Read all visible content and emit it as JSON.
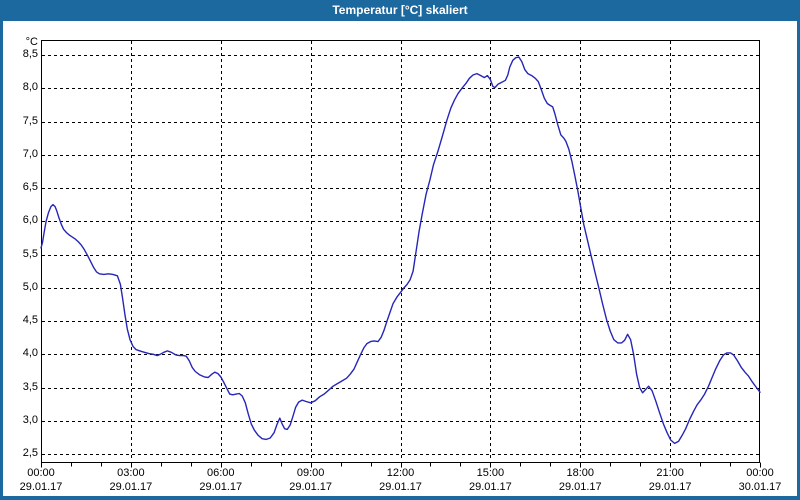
{
  "window": {
    "title": "Temperatur [°C] skaliert",
    "colors": {
      "title_bar": "#1c69a0",
      "border": "#1c69a0",
      "content_bg": "#ffffff",
      "grid": "#000000",
      "axis": "#000000",
      "text": "#000000"
    }
  },
  "chart_data": {
    "type": "line",
    "title": "Temperatur [°C] skaliert",
    "grid": {
      "style": "dashed",
      "color": "#000000",
      "horizontal": true,
      "vertical": true
    },
    "legend": "none",
    "axes": {
      "y": {
        "unit": "°C",
        "decimal_style": "comma",
        "tick_min": 2.5,
        "tick_max": 8.5,
        "tick_step": 0.5,
        "labels": [
          "8,5",
          "8,0",
          "7,5",
          "7,0",
          "6,5",
          "6,0",
          "5,5",
          "5,0",
          "4,5",
          "4,0",
          "3,5",
          "3,0",
          "2,5"
        ],
        "ylim": [
          2.38,
          8.73
        ]
      },
      "x": {
        "xlim_hours": [
          0,
          24
        ],
        "major_step_hours": 3,
        "minor_step_hours": 1,
        "ticks": [
          {
            "time": "00:00",
            "date": "29.01.17"
          },
          {
            "time": "03:00",
            "date": "29.01.17"
          },
          {
            "time": "06:00",
            "date": "29.01.17"
          },
          {
            "time": "09:00",
            "date": "29.01.17"
          },
          {
            "time": "12:00",
            "date": "29.01.17"
          },
          {
            "time": "15:00",
            "date": "29.01.17"
          },
          {
            "time": "18:00",
            "date": "29.01.17"
          },
          {
            "time": "21:00",
            "date": "29.01.17"
          },
          {
            "time": "00:00",
            "date": "30.01.17"
          }
        ]
      }
    },
    "series": [
      {
        "name": "Temperatur",
        "color": "#2626b8",
        "points": [
          [
            0,
            5.6
          ],
          [
            0.05,
            5.68
          ],
          [
            0.1,
            5.82
          ],
          [
            0.17,
            6.0
          ],
          [
            0.25,
            6.13
          ],
          [
            0.33,
            6.22
          ],
          [
            0.4,
            6.25
          ],
          [
            0.47,
            6.22
          ],
          [
            0.53,
            6.15
          ],
          [
            0.6,
            6.05
          ],
          [
            0.68,
            5.95
          ],
          [
            0.75,
            5.88
          ],
          [
            0.85,
            5.83
          ],
          [
            0.95,
            5.79
          ],
          [
            1.05,
            5.76
          ],
          [
            1.15,
            5.73
          ],
          [
            1.25,
            5.69
          ],
          [
            1.35,
            5.64
          ],
          [
            1.45,
            5.57
          ],
          [
            1.55,
            5.49
          ],
          [
            1.65,
            5.4
          ],
          [
            1.75,
            5.31
          ],
          [
            1.85,
            5.24
          ],
          [
            1.95,
            5.21
          ],
          [
            2.1,
            5.2
          ],
          [
            2.25,
            5.21
          ],
          [
            2.4,
            5.2
          ],
          [
            2.55,
            5.18
          ],
          [
            2.65,
            5.05
          ],
          [
            2.72,
            4.85
          ],
          [
            2.8,
            4.6
          ],
          [
            2.88,
            4.38
          ],
          [
            2.97,
            4.22
          ],
          [
            3.07,
            4.12
          ],
          [
            3.17,
            4.07
          ],
          [
            3.3,
            4.05
          ],
          [
            3.45,
            4.03
          ],
          [
            3.6,
            4.01
          ],
          [
            3.75,
            4.0
          ],
          [
            3.88,
            3.98
          ],
          [
            3.98,
            4.0
          ],
          [
            4.1,
            4.03
          ],
          [
            4.22,
            4.05
          ],
          [
            4.35,
            4.03
          ],
          [
            4.5,
            3.99
          ],
          [
            4.62,
            3.98
          ],
          [
            4.75,
            3.98
          ],
          [
            4.85,
            3.97
          ],
          [
            4.95,
            3.9
          ],
          [
            5.05,
            3.8
          ],
          [
            5.15,
            3.74
          ],
          [
            5.3,
            3.69
          ],
          [
            5.45,
            3.66
          ],
          [
            5.58,
            3.65
          ],
          [
            5.7,
            3.7
          ],
          [
            5.8,
            3.73
          ],
          [
            5.9,
            3.71
          ],
          [
            6.0,
            3.66
          ],
          [
            6.1,
            3.58
          ],
          [
            6.2,
            3.49
          ],
          [
            6.3,
            3.4
          ],
          [
            6.4,
            3.39
          ],
          [
            6.52,
            3.4
          ],
          [
            6.62,
            3.41
          ],
          [
            6.72,
            3.37
          ],
          [
            6.82,
            3.27
          ],
          [
            6.92,
            3.1
          ],
          [
            7.02,
            2.95
          ],
          [
            7.12,
            2.86
          ],
          [
            7.25,
            2.78
          ],
          [
            7.38,
            2.73
          ],
          [
            7.52,
            2.72
          ],
          [
            7.65,
            2.74
          ],
          [
            7.78,
            2.82
          ],
          [
            7.88,
            2.95
          ],
          [
            7.97,
            3.04
          ],
          [
            8.05,
            2.95
          ],
          [
            8.13,
            2.88
          ],
          [
            8.22,
            2.87
          ],
          [
            8.32,
            2.94
          ],
          [
            8.42,
            3.08
          ],
          [
            8.5,
            3.2
          ],
          [
            8.6,
            3.28
          ],
          [
            8.72,
            3.31
          ],
          [
            8.85,
            3.29
          ],
          [
            9.0,
            3.27
          ],
          [
            9.15,
            3.3
          ],
          [
            9.3,
            3.36
          ],
          [
            9.45,
            3.4
          ],
          [
            9.6,
            3.46
          ],
          [
            9.75,
            3.52
          ],
          [
            9.9,
            3.56
          ],
          [
            10.05,
            3.6
          ],
          [
            10.2,
            3.64
          ],
          [
            10.32,
            3.7
          ],
          [
            10.45,
            3.78
          ],
          [
            10.55,
            3.88
          ],
          [
            10.67,
            4.0
          ],
          [
            10.78,
            4.1
          ],
          [
            10.88,
            4.16
          ],
          [
            11.0,
            4.19
          ],
          [
            11.12,
            4.2
          ],
          [
            11.25,
            4.19
          ],
          [
            11.35,
            4.25
          ],
          [
            11.45,
            4.36
          ],
          [
            11.55,
            4.5
          ],
          [
            11.65,
            4.63
          ],
          [
            11.75,
            4.76
          ],
          [
            11.88,
            4.86
          ],
          [
            12.0,
            4.93
          ],
          [
            12.1,
            4.99
          ],
          [
            12.22,
            5.05
          ],
          [
            12.32,
            5.12
          ],
          [
            12.42,
            5.25
          ],
          [
            12.52,
            5.55
          ],
          [
            12.62,
            5.85
          ],
          [
            12.72,
            6.1
          ],
          [
            12.85,
            6.4
          ],
          [
            12.98,
            6.62
          ],
          [
            13.1,
            6.85
          ],
          [
            13.25,
            7.05
          ],
          [
            13.4,
            7.28
          ],
          [
            13.55,
            7.52
          ],
          [
            13.68,
            7.7
          ],
          [
            13.8,
            7.82
          ],
          [
            13.92,
            7.92
          ],
          [
            14.05,
            8.0
          ],
          [
            14.18,
            8.07
          ],
          [
            14.3,
            8.15
          ],
          [
            14.42,
            8.2
          ],
          [
            14.55,
            8.22
          ],
          [
            14.68,
            8.19
          ],
          [
            14.8,
            8.16
          ],
          [
            14.9,
            8.19
          ],
          [
            15.0,
            8.13
          ],
          [
            15.08,
            8.03
          ],
          [
            15.15,
            8.01
          ],
          [
            15.25,
            8.06
          ],
          [
            15.38,
            8.09
          ],
          [
            15.5,
            8.12
          ],
          [
            15.58,
            8.2
          ],
          [
            15.65,
            8.32
          ],
          [
            15.75,
            8.42
          ],
          [
            15.85,
            8.46
          ],
          [
            15.95,
            8.47
          ],
          [
            16.05,
            8.4
          ],
          [
            16.15,
            8.28
          ],
          [
            16.25,
            8.22
          ],
          [
            16.38,
            8.19
          ],
          [
            16.5,
            8.15
          ],
          [
            16.6,
            8.1
          ],
          [
            16.7,
            7.98
          ],
          [
            16.8,
            7.85
          ],
          [
            16.9,
            7.77
          ],
          [
            17.0,
            7.74
          ],
          [
            17.08,
            7.72
          ],
          [
            17.15,
            7.62
          ],
          [
            17.25,
            7.45
          ],
          [
            17.35,
            7.3
          ],
          [
            17.45,
            7.25
          ],
          [
            17.52,
            7.2
          ],
          [
            17.62,
            7.08
          ],
          [
            17.72,
            6.9
          ],
          [
            17.82,
            6.68
          ],
          [
            17.92,
            6.45
          ],
          [
            18.02,
            6.2
          ],
          [
            18.12,
            5.95
          ],
          [
            18.25,
            5.7
          ],
          [
            18.38,
            5.45
          ],
          [
            18.5,
            5.22
          ],
          [
            18.62,
            5.0
          ],
          [
            18.75,
            4.75
          ],
          [
            18.88,
            4.52
          ],
          [
            19.0,
            4.35
          ],
          [
            19.12,
            4.22
          ],
          [
            19.25,
            4.17
          ],
          [
            19.38,
            4.17
          ],
          [
            19.48,
            4.21
          ],
          [
            19.58,
            4.3
          ],
          [
            19.68,
            4.22
          ],
          [
            19.78,
            4.0
          ],
          [
            19.88,
            3.7
          ],
          [
            19.98,
            3.5
          ],
          [
            20.08,
            3.42
          ],
          [
            20.18,
            3.47
          ],
          [
            20.28,
            3.52
          ],
          [
            20.4,
            3.45
          ],
          [
            20.52,
            3.3
          ],
          [
            20.65,
            3.12
          ],
          [
            20.78,
            2.95
          ],
          [
            20.9,
            2.82
          ],
          [
            21.02,
            2.71
          ],
          [
            21.15,
            2.66
          ],
          [
            21.28,
            2.69
          ],
          [
            21.4,
            2.78
          ],
          [
            21.52,
            2.88
          ],
          [
            21.65,
            3.02
          ],
          [
            21.78,
            3.14
          ],
          [
            21.9,
            3.24
          ],
          [
            22.02,
            3.31
          ],
          [
            22.15,
            3.4
          ],
          [
            22.28,
            3.52
          ],
          [
            22.4,
            3.65
          ],
          [
            22.52,
            3.78
          ],
          [
            22.65,
            3.9
          ],
          [
            22.78,
            3.99
          ],
          [
            22.9,
            4.02
          ],
          [
            23.02,
            4.02
          ],
          [
            23.12,
            3.99
          ],
          [
            23.25,
            3.9
          ],
          [
            23.38,
            3.8
          ],
          [
            23.5,
            3.73
          ],
          [
            23.62,
            3.67
          ],
          [
            23.75,
            3.58
          ],
          [
            23.88,
            3.5
          ],
          [
            24.0,
            3.43
          ]
        ]
      }
    ]
  }
}
